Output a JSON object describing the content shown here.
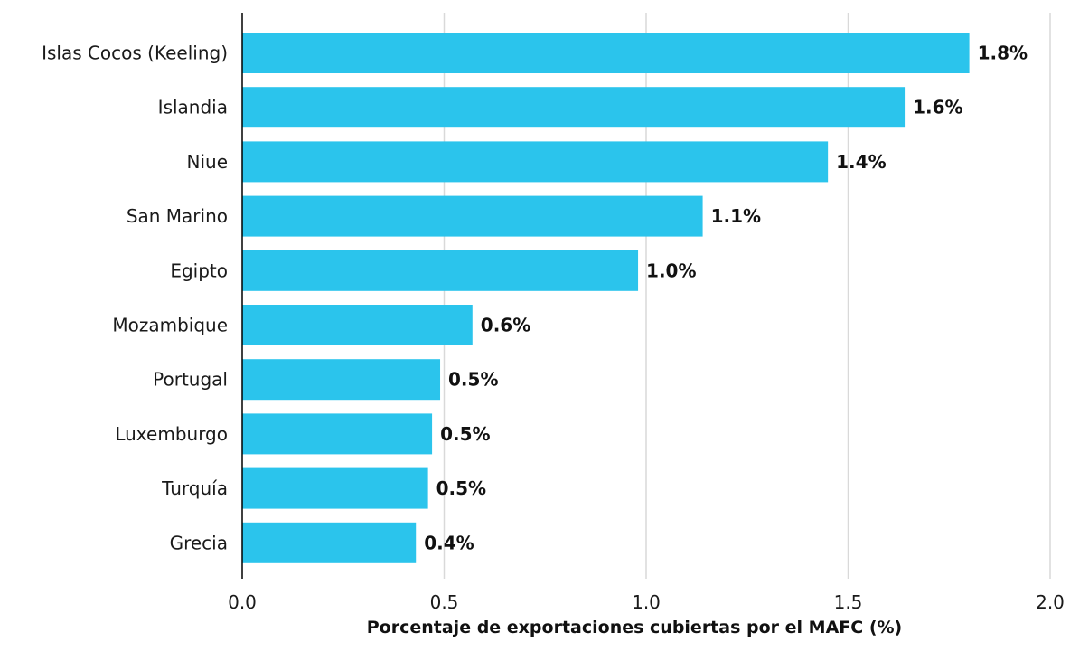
{
  "chart_data": {
    "type": "bar",
    "orientation": "horizontal",
    "title": "",
    "xlabel": "Porcentaje de exportaciones cubiertas por el MAFC (%)",
    "ylabel": "",
    "xlim": [
      0,
      2
    ],
    "x_ticks": [
      "0.0",
      "0.5",
      "1.0",
      "1.5",
      "2.0"
    ],
    "grid": "vertical",
    "bar_color": "#2bc4ec",
    "categories": [
      "Islas Cocos (Keeling)",
      "Islandia",
      "Niue",
      "San Marino",
      "Egipto",
      "Mozambique",
      "Portugal",
      "Luxemburgo",
      "Turquía",
      "Grecia"
    ],
    "values": [
      1.8,
      1.64,
      1.45,
      1.14,
      0.98,
      0.57,
      0.49,
      0.47,
      0.46,
      0.43
    ],
    "value_labels": [
      "1.8%",
      "1.6%",
      "1.4%",
      "1.1%",
      "1.0%",
      "0.6%",
      "0.5%",
      "0.5%",
      "0.5%",
      "0.4%"
    ]
  }
}
